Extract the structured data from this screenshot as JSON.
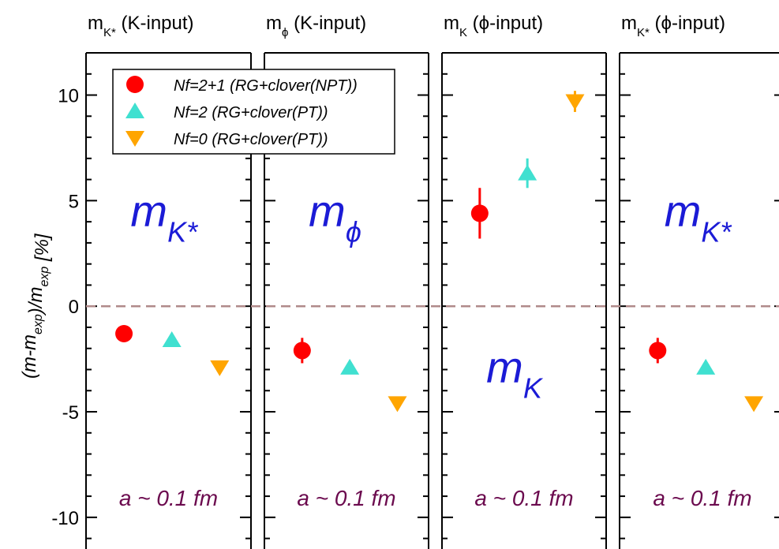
{
  "chart_data": {
    "type": "scatter",
    "ylabel": "(m-m_exp)/m_exp [%]",
    "ylim": [
      -11.5,
      12
    ],
    "y_ticks": [
      10,
      5,
      0,
      -5,
      -10
    ],
    "y_tick_labels": [
      "10",
      "5",
      "0",
      "-5",
      "-10"
    ],
    "grid": false,
    "reference_line": {
      "y": 0,
      "style": "dashed",
      "color": "#b08a8a"
    },
    "legend": {
      "placement": "top-left",
      "entries": [
        {
          "label": "Nf=2+1 (RG+clover(NPT))",
          "marker": "circle",
          "color": "#ff0000"
        },
        {
          "label": "Nf=2    (RG+clover(PT))",
          "marker": "triangle-up",
          "color": "#40e0d0"
        },
        {
          "label": "Nf=0    (RG+clover(PT))",
          "marker": "triangle-down",
          "color": "#ffa500"
        }
      ]
    },
    "panels": [
      {
        "header": {
          "base": "m",
          "sub": "K*",
          "rest": " (K-input)"
        },
        "big_label": {
          "base": "m",
          "sub": "K*",
          "position": "upper"
        },
        "footer": "a ~ 0.1 fm",
        "points": [
          {
            "series": 0,
            "x": 0.23,
            "y": -1.3,
            "err": 0.2
          },
          {
            "series": 1,
            "x": 0.52,
            "y": -1.6,
            "err": 0
          },
          {
            "series": 2,
            "x": 0.81,
            "y": -2.9,
            "err": 0
          }
        ]
      },
      {
        "header": {
          "base": "m",
          "sub": "ϕ",
          "rest": " (K-input)"
        },
        "big_label": {
          "base": "m",
          "sub": "ϕ",
          "position": "upper"
        },
        "footer": "a ~ 0.1 fm",
        "points": [
          {
            "series": 0,
            "x": 0.23,
            "y": -2.1,
            "err": 0.6
          },
          {
            "series": 1,
            "x": 0.52,
            "y": -2.9,
            "err": 0
          },
          {
            "series": 2,
            "x": 0.81,
            "y": -4.6,
            "err": 0
          }
        ]
      },
      {
        "header": {
          "base": "m",
          "sub": "K",
          "rest": " (ϕ-input)"
        },
        "big_label": {
          "base": "m",
          "sub": "K",
          "position": "lower"
        },
        "footer": "a ~ 0.1 fm",
        "points": [
          {
            "series": 0,
            "x": 0.23,
            "y": 4.4,
            "err": 1.2
          },
          {
            "series": 1,
            "x": 0.52,
            "y": 6.3,
            "err": 0.7
          },
          {
            "series": 2,
            "x": 0.81,
            "y": 9.7,
            "err": 0.5
          }
        ]
      },
      {
        "header": {
          "base": "m",
          "sub": "K*",
          "rest": " (ϕ-input)"
        },
        "big_label": {
          "base": "m",
          "sub": "K*",
          "position": "upper"
        },
        "footer": "a ~ 0.1 fm",
        "points": [
          {
            "series": 0,
            "x": 0.23,
            "y": -2.1,
            "err": 0.6
          },
          {
            "series": 1,
            "x": 0.52,
            "y": -2.9,
            "err": 0
          },
          {
            "series": 2,
            "x": 0.81,
            "y": -4.6,
            "err": 0
          }
        ]
      }
    ]
  }
}
